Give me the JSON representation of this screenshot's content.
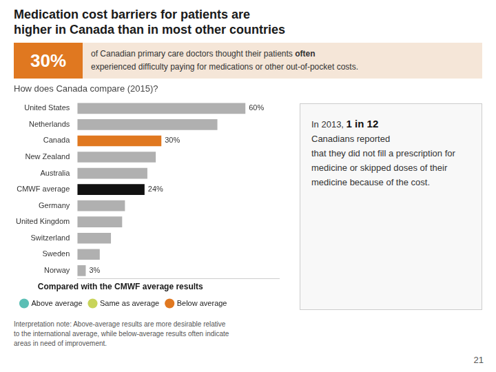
{
  "chart_data": {
    "type": "bar",
    "orientation": "horizontal",
    "title": [
      "Medication cost barriers for patients are",
      "higher in Canada than in most other countries"
    ],
    "highlight_figure": "30%",
    "highlight_lines": [
      "of Canadian primary care doctors thought their patients often",
      "experienced difficulty paying for medications or other out-of-pocket costs."
    ],
    "highlight_emphasis": "often",
    "subtitle": "How does Canada compare (2015)?",
    "categories": [
      "United States",
      "Netherlands",
      "Canada",
      "New Zealand",
      "Australia",
      "CMWF average",
      "Germany",
      "United Kingdom",
      "Switzerland",
      "Sweden",
      "Norway"
    ],
    "values": [
      60,
      50,
      30,
      28,
      25,
      24,
      17,
      16,
      12,
      8,
      3
    ],
    "value_labels": [
      "60%",
      null,
      "30%",
      null,
      null,
      "24%",
      null,
      null,
      null,
      null,
      "3%"
    ],
    "colors": [
      "#b0b0b0",
      "#b0b0b0",
      "#e07820",
      "#b0b0b0",
      "#b0b0b0",
      "#111111",
      "#b0b0b0",
      "#b0b0b0",
      "#b0b0b0",
      "#b0b0b0",
      "#b0b0b0"
    ],
    "xlim": [
      0,
      72
    ],
    "xticks": [],
    "grid": false,
    "tick_labels": "y",
    "legend": "bottom",
    "legend_title": "Compared with the CMWF average results",
    "legend_entries": [
      {
        "name": "Above average",
        "color": "#5bbfb5"
      },
      {
        "name": "Same as average",
        "color": "#c8d45a"
      },
      {
        "name": "Below average",
        "color": "#e07820"
      }
    ],
    "info_lines": [
      "In 2013, 1 in 12",
      "Canadians reported",
      "that they did not fill a prescription for",
      "medicine or skipped doses of their",
      "medicine because of the cost."
    ],
    "info_emphasis": "1 in 12",
    "note_lines": [
      "Interpretation note: Above-average results are more desirable relative",
      "to the international average, while below-average results often indicate",
      "areas in need of improvement."
    ],
    "page_number": "21"
  }
}
